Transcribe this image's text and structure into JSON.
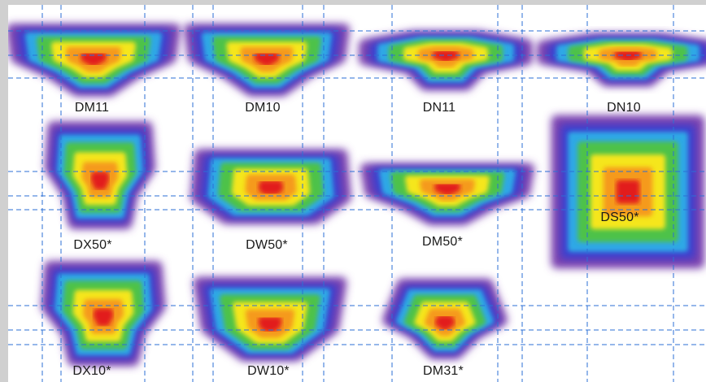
{
  "patterns": [
    {
      "id": "DM11",
      "label": "DM11",
      "kind": "batwing"
    },
    {
      "id": "DM10",
      "label": "DM10",
      "kind": "batwing"
    },
    {
      "id": "DN11",
      "label": "DN11",
      "kind": "narrow-wide"
    },
    {
      "id": "DN10",
      "label": "DN10",
      "kind": "narrow-wide"
    },
    {
      "id": "DX50",
      "label": "DX50*",
      "kind": "tall-neck"
    },
    {
      "id": "DW50",
      "label": "DW50*",
      "kind": "wide-flat"
    },
    {
      "id": "DM50",
      "label": "DM50*",
      "kind": "batwing"
    },
    {
      "id": "DS50",
      "label": "DS50*",
      "kind": "square"
    },
    {
      "id": "DX10",
      "label": "DX10*",
      "kind": "tall-neck"
    },
    {
      "id": "DW10",
      "label": "DW10*",
      "kind": "rounded"
    },
    {
      "id": "DM31",
      "label": "DM31*",
      "kind": "trapezoid"
    }
  ],
  "colors": {
    "ring1": "#7a3fae",
    "ring2": "#3b3fd0",
    "ring3": "#2fa8e6",
    "ring4": "#4ec24a",
    "ring5": "#f5e61e",
    "ring6": "#f59a1a",
    "core": "#e21a1a",
    "grid": "#2b6fd6"
  }
}
